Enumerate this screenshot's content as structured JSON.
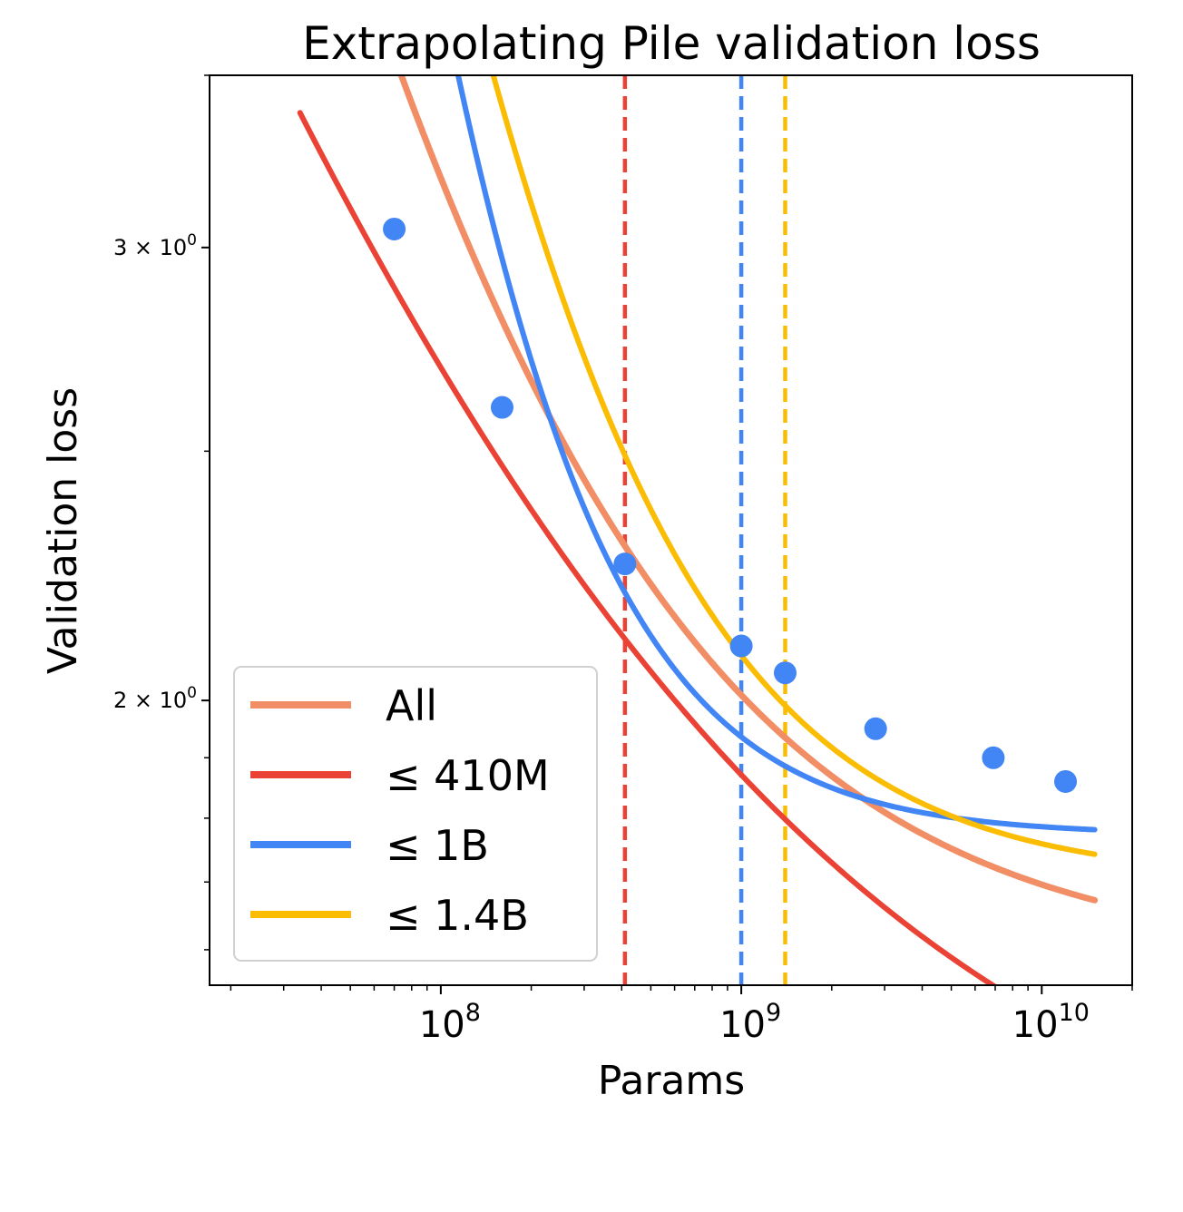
{
  "chart_data": {
    "type": "line",
    "title": "Extrapolating Pile validation loss",
    "xlabel": "Params",
    "ylabel": "Validation loss",
    "xscale": "log",
    "yscale": "log",
    "xlim": [
      17000000,
      20000000000
    ],
    "ylim": [
      1.55,
      3.5
    ],
    "x_ticks": [
      {
        "value": 100000000,
        "base": "10",
        "exp": "8"
      },
      {
        "value": 1000000000,
        "base": "10",
        "exp": "9"
      },
      {
        "value": 10000000000,
        "base": "10",
        "exp": "10"
      }
    ],
    "y_ticks": [
      {
        "value": 3,
        "coef": "3",
        "base": "10",
        "exp": "0"
      },
      {
        "value": 2,
        "coef": "2",
        "base": "10",
        "exp": "0"
      }
    ],
    "y_tick_times": "×",
    "points": {
      "color": "#4285f4",
      "x": [
        70000000,
        160000000,
        410000000,
        1000000000,
        1400000000,
        2800000000,
        6900000000,
        12000000000
      ],
      "y": [
        3.05,
        2.6,
        2.26,
        2.1,
        2.05,
        1.95,
        1.9,
        1.86
      ]
    },
    "series": [
      {
        "name": "All",
        "color": "#f28e66",
        "E": 1.583,
        "A": 66006,
        "alpha": 0.5766,
        "width": 7
      },
      {
        "name": "≤ 410M",
        "color": "#ea4335",
        "E": 1.225,
        "A": 1051,
        "alpha": 0.3568,
        "width": 6
      },
      {
        "name": "≤ 1B",
        "color": "#4285f4",
        "E": 1.773,
        "A": 1017000000.0,
        "alpha": 1.0884,
        "width": 6
      },
      {
        "name": "≤ 1.4B",
        "color": "#fbbc04",
        "E": 1.701,
        "A": 8474000.0,
        "alpha": 0.8163,
        "width": 6
      }
    ],
    "curve_x_range": [
      34000000,
      15000000000
    ],
    "vlines": [
      {
        "x": 410000000,
        "color": "#ea4335"
      },
      {
        "x": 1000000000,
        "color": "#4285f4"
      },
      {
        "x": 1400000000,
        "color": "#fbbc04"
      }
    ],
    "legend": {
      "position": "lower-left",
      "entries": [
        {
          "label": "All",
          "color": "#f28e66"
        },
        {
          "label": "≤ 410M",
          "color": "#ea4335"
        },
        {
          "label": "≤ 1B",
          "color": "#4285f4"
        },
        {
          "label": "≤ 1.4B",
          "color": "#fbbc04"
        }
      ]
    }
  }
}
